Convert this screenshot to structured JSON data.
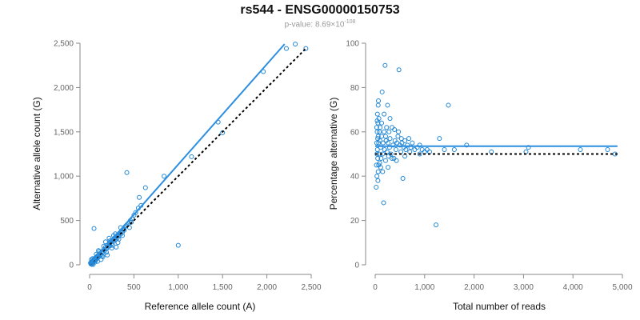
{
  "title": "rs544 - ENSG00000150753",
  "subtitle": {
    "prefix": "p-value: 8.69×10",
    "exponent": "-108"
  },
  "colors": {
    "points": "#1f86d6",
    "fit": "#2b8ee0",
    "reference": "#000000",
    "axis": "#888888"
  },
  "chart_data": [
    {
      "type": "scatter",
      "xlabel": "Reference allele count (A)",
      "ylabel": "Alternative allele count (G)",
      "xlim": [
        0,
        2500
      ],
      "ylim": [
        0,
        2500
      ],
      "xticks": [
        0,
        500,
        1000,
        1500,
        2000,
        2500
      ],
      "yticks": [
        0,
        500,
        1000,
        1500,
        2000,
        2500
      ],
      "xtick_labels": [
        "0",
        "500",
        "1,000",
        "1,500",
        "2,000",
        "2,500"
      ],
      "ytick_labels": [
        "0",
        "500",
        "1,000",
        "1,500",
        "2,000",
        "2,500"
      ],
      "grid": false,
      "fit_line": [
        [
          0,
          0
        ],
        [
          2200,
          2490
        ]
      ],
      "reference_line": [
        [
          0,
          0
        ],
        [
          2450,
          2450
        ]
      ],
      "points": [
        [
          10,
          20
        ],
        [
          15,
          10
        ],
        [
          20,
          30
        ],
        [
          25,
          15
        ],
        [
          30,
          40
        ],
        [
          35,
          25
        ],
        [
          40,
          50
        ],
        [
          45,
          35
        ],
        [
          50,
          60
        ],
        [
          55,
          45
        ],
        [
          60,
          70
        ],
        [
          65,
          55
        ],
        [
          70,
          80
        ],
        [
          75,
          60
        ],
        [
          80,
          90
        ],
        [
          85,
          75
        ],
        [
          90,
          100
        ],
        [
          95,
          85
        ],
        [
          100,
          110
        ],
        [
          110,
          95
        ],
        [
          120,
          130
        ],
        [
          130,
          115
        ],
        [
          140,
          150
        ],
        [
          150,
          140
        ],
        [
          160,
          170
        ],
        [
          170,
          160
        ],
        [
          180,
          200
        ],
        [
          190,
          180
        ],
        [
          200,
          220
        ],
        [
          210,
          200
        ],
        [
          220,
          240
        ],
        [
          230,
          215
        ],
        [
          240,
          260
        ],
        [
          250,
          240
        ],
        [
          260,
          280
        ],
        [
          270,
          265
        ],
        [
          280,
          300
        ],
        [
          290,
          285
        ],
        [
          300,
          320
        ],
        [
          310,
          300
        ],
        [
          320,
          340
        ],
        [
          330,
          325
        ],
        [
          340,
          360
        ],
        [
          350,
          345
        ],
        [
          360,
          380
        ],
        [
          370,
          365
        ],
        [
          380,
          400
        ],
        [
          390,
          390
        ],
        [
          400,
          430
        ],
        [
          420,
          450
        ],
        [
          440,
          470
        ],
        [
          460,
          500
        ],
        [
          480,
          520
        ],
        [
          500,
          560
        ],
        [
          520,
          590
        ],
        [
          550,
          640
        ],
        [
          580,
          670
        ],
        [
          50,
          410
        ],
        [
          200,
          110
        ],
        [
          250,
          190
        ],
        [
          300,
          200
        ],
        [
          100,
          160
        ],
        [
          150,
          90
        ],
        [
          180,
          260
        ],
        [
          130,
          60
        ],
        [
          220,
          300
        ],
        [
          270,
          330
        ],
        [
          320,
          250
        ],
        [
          350,
          420
        ],
        [
          420,
          1040
        ],
        [
          560,
          760
        ],
        [
          630,
          870
        ],
        [
          840,
          1000
        ],
        [
          1000,
          220
        ],
        [
          1150,
          1220
        ],
        [
          1450,
          1610
        ],
        [
          1500,
          1490
        ],
        [
          1960,
          2180
        ],
        [
          2220,
          2440
        ],
        [
          2320,
          2490
        ],
        [
          2440,
          2440
        ],
        [
          20,
          60
        ],
        [
          25,
          5
        ],
        [
          35,
          70
        ],
        [
          40,
          5
        ],
        [
          60,
          30
        ],
        [
          75,
          120
        ],
        [
          90,
          40
        ],
        [
          110,
          150
        ],
        [
          140,
          100
        ],
        [
          160,
          210
        ],
        [
          190,
          140
        ],
        [
          230,
          270
        ],
        [
          260,
          220
        ],
        [
          290,
          350
        ],
        [
          330,
          290
        ],
        [
          370,
          330
        ],
        [
          410,
          440
        ],
        [
          450,
          420
        ],
        [
          470,
          480
        ]
      ]
    },
    {
      "type": "scatter",
      "xlabel": "Total number of reads",
      "ylabel": "Percentage alternative (G)",
      "xlim": [
        0,
        5000
      ],
      "ylim": [
        0,
        100
      ],
      "xticks": [
        0,
        1000,
        2000,
        3000,
        4000,
        5000
      ],
      "yticks": [
        0,
        20,
        40,
        60,
        80,
        100
      ],
      "xtick_labels": [
        "0",
        "1,000",
        "2,000",
        "3,000",
        "4,000",
        "5,000"
      ],
      "ytick_labels": [
        "0",
        "20",
        "40",
        "60",
        "80",
        "100"
      ],
      "grid": false,
      "fit_line": [
        [
          0,
          53.5
        ],
        [
          4900,
          53.5
        ]
      ],
      "reference_line": [
        [
          0,
          50
        ],
        [
          4900,
          50
        ]
      ],
      "points": [
        [
          20,
          35
        ],
        [
          25,
          45
        ],
        [
          30,
          55
        ],
        [
          30,
          62
        ],
        [
          35,
          40
        ],
        [
          40,
          60
        ],
        [
          40,
          65
        ],
        [
          45,
          52
        ],
        [
          50,
          48
        ],
        [
          50,
          57
        ],
        [
          55,
          64
        ],
        [
          60,
          42
        ],
        [
          60,
          58
        ],
        [
          70,
          55
        ],
        [
          75,
          66
        ],
        [
          80,
          50
        ],
        [
          85,
          60
        ],
        [
          90,
          46
        ],
        [
          95,
          56
        ],
        [
          100,
          62
        ],
        [
          110,
          53
        ],
        [
          120,
          48
        ],
        [
          130,
          58
        ],
        [
          140,
          78
        ],
        [
          150,
          50
        ],
        [
          160,
          55
        ],
        [
          170,
          28
        ],
        [
          180,
          60
        ],
        [
          190,
          52
        ],
        [
          200,
          90
        ],
        [
          210,
          47
        ],
        [
          220,
          56
        ],
        [
          230,
          62
        ],
        [
          240,
          51
        ],
        [
          250,
          72
        ],
        [
          260,
          55
        ],
        [
          270,
          49
        ],
        [
          280,
          60
        ],
        [
          290,
          53
        ],
        [
          300,
          57
        ],
        [
          320,
          50
        ],
        [
          340,
          62
        ],
        [
          360,
          54
        ],
        [
          380,
          48
        ],
        [
          400,
          56
        ],
        [
          420,
          52
        ],
        [
          440,
          55
        ],
        [
          460,
          58
        ],
        [
          480,
          88
        ],
        [
          500,
          54
        ],
        [
          520,
          51
        ],
        [
          540,
          55
        ],
        [
          560,
          39
        ],
        [
          580,
          53
        ],
        [
          600,
          56
        ],
        [
          620,
          52
        ],
        [
          650,
          54
        ],
        [
          700,
          51
        ],
        [
          750,
          55
        ],
        [
          800,
          52
        ],
        [
          850,
          53
        ],
        [
          900,
          50
        ],
        [
          1000,
          51
        ],
        [
          1050,
          52
        ],
        [
          1100,
          51
        ],
        [
          1230,
          18
        ],
        [
          1300,
          57
        ],
        [
          1400,
          52
        ],
        [
          1480,
          72
        ],
        [
          1600,
          52
        ],
        [
          1850,
          54
        ],
        [
          2350,
          51
        ],
        [
          3050,
          51
        ],
        [
          3100,
          53
        ],
        [
          4150,
          52
        ],
        [
          4700,
          52
        ],
        [
          4850,
          50
        ],
        [
          60,
          72
        ],
        [
          70,
          45
        ],
        [
          130,
          64
        ],
        [
          150,
          42
        ],
        [
          180,
          68
        ],
        [
          210,
          58
        ],
        [
          260,
          44
        ],
        [
          300,
          66
        ],
        [
          340,
          48
        ],
        [
          390,
          61
        ],
        [
          430,
          47
        ],
        [
          470,
          60
        ],
        [
          530,
          57
        ],
        [
          600,
          49
        ],
        [
          680,
          57
        ],
        [
          720,
          53
        ],
        [
          900,
          54
        ],
        [
          950,
          52
        ],
        [
          35,
          50
        ],
        [
          45,
          68
        ],
        [
          55,
          38
        ],
        [
          65,
          74
        ],
        [
          110,
          44
        ]
      ]
    }
  ]
}
